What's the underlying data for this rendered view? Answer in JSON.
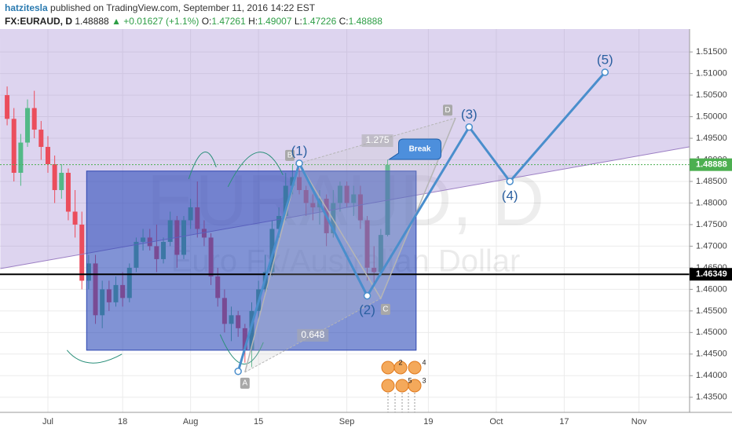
{
  "header": {
    "author": "hatzitesla",
    "published": "published on TradingView.com, September 11, 2016 14:22 EST",
    "symbol": "FX:EURAUD, D",
    "last": "1.48888",
    "change": "▲ +0.01627 (+1.1%)",
    "o_label": "O:",
    "o": "1.47261",
    "h_label": "H:",
    "h": "1.49007",
    "l_label": "L:",
    "l": "1.47226",
    "c_label": "C:",
    "c": "1.48888"
  },
  "chart_data": {
    "type": "candlestick",
    "watermark": "EURAUD, D",
    "watermark_sub": "Euro Fx/Australian Dollar",
    "x": [
      -6,
      -5,
      -4,
      -3,
      -2,
      -1,
      0,
      1,
      2,
      3,
      4,
      5,
      6,
      7,
      8,
      9,
      10,
      11,
      12,
      13,
      14,
      15,
      16,
      17,
      18,
      19,
      20,
      21,
      22,
      23,
      24,
      25,
      26,
      27,
      28,
      29,
      30,
      31,
      32,
      33,
      34,
      35,
      36,
      37,
      38,
      39,
      40,
      41,
      42,
      43,
      44,
      45,
      46,
      47,
      48,
      49,
      50
    ],
    "open": [
      1.505,
      1.4995,
      1.487,
      1.494,
      1.502,
      1.497,
      1.493,
      1.489,
      1.483,
      1.487,
      1.478,
      1.475,
      1.462,
      1.466,
      1.454,
      1.46,
      1.457,
      1.461,
      1.458,
      1.465,
      1.471,
      1.472,
      1.47,
      1.467,
      1.471,
      1.476,
      1.468,
      1.476,
      1.479,
      1.474,
      1.472,
      1.463,
      1.458,
      1.452,
      1.454,
      1.451,
      1.446,
      1.455,
      1.46,
      1.464,
      1.474,
      1.477,
      1.484,
      1.486,
      1.483,
      1.48,
      1.479,
      1.481,
      1.473,
      1.48,
      1.484,
      1.48,
      1.482,
      1.476,
      1.465,
      1.464,
      1.47261
    ],
    "high": [
      1.507,
      1.502,
      1.496,
      1.504,
      1.506,
      1.499,
      1.4955,
      1.491,
      1.489,
      1.488,
      1.483,
      1.478,
      1.468,
      1.468,
      1.462,
      1.462,
      1.463,
      1.464,
      1.466,
      1.472,
      1.474,
      1.474,
      1.475,
      1.472,
      1.478,
      1.477,
      1.477,
      1.481,
      1.485,
      1.476,
      1.473,
      1.465,
      1.46,
      1.456,
      1.455,
      1.452,
      1.457,
      1.462,
      1.468,
      1.476,
      1.479,
      1.487,
      1.489,
      1.488,
      1.484,
      1.482,
      1.483,
      1.482,
      1.483,
      1.485,
      1.485,
      1.484,
      1.484,
      1.477,
      1.47,
      1.474,
      1.49007
    ],
    "low": [
      1.498,
      1.485,
      1.484,
      1.493,
      1.495,
      1.49,
      1.487,
      1.48,
      1.481,
      1.476,
      1.472,
      1.46,
      1.46,
      1.452,
      1.451,
      1.455,
      1.456,
      1.456,
      1.457,
      1.464,
      1.469,
      1.469,
      1.464,
      1.466,
      1.47,
      1.465,
      1.467,
      1.474,
      1.472,
      1.47,
      1.461,
      1.456,
      1.45,
      1.448,
      1.449,
      1.443,
      1.442,
      1.453,
      1.459,
      1.463,
      1.472,
      1.476,
      1.482,
      1.482,
      1.477,
      1.476,
      1.475,
      1.47,
      1.472,
      1.478,
      1.479,
      1.477,
      1.474,
      1.462,
      1.461,
      1.463,
      1.47226
    ],
    "close": [
      1.4995,
      1.487,
      1.494,
      1.502,
      1.497,
      1.493,
      1.489,
      1.483,
      1.487,
      1.478,
      1.475,
      1.462,
      1.466,
      1.454,
      1.46,
      1.457,
      1.461,
      1.458,
      1.465,
      1.471,
      1.472,
      1.47,
      1.467,
      1.471,
      1.476,
      1.468,
      1.476,
      1.479,
      1.474,
      1.472,
      1.463,
      1.458,
      1.452,
      1.454,
      1.451,
      1.446,
      1.455,
      1.46,
      1.464,
      1.474,
      1.477,
      1.484,
      1.486,
      1.483,
      1.48,
      1.479,
      1.481,
      1.473,
      1.48,
      1.484,
      1.48,
      1.482,
      1.476,
      1.465,
      1.464,
      1.4726,
      1.48888
    ],
    "up_color": "#53b987",
    "down_color": "#eb4d5c",
    "xlim": [
      -7.05,
      94.45
    ],
    "xticks": [
      {
        "value": 0,
        "label": "Jul"
      },
      {
        "value": 11,
        "label": "18"
      },
      {
        "value": 21,
        "label": "Aug"
      },
      {
        "value": 31,
        "label": "15"
      },
      {
        "value": 44,
        "label": "Sep"
      },
      {
        "value": 56,
        "label": "19"
      },
      {
        "value": 66,
        "label": "Oct"
      },
      {
        "value": 76,
        "label": "17"
      },
      {
        "value": 87,
        "label": "Nov"
      }
    ],
    "ylim": [
      1.4315,
      1.5203
    ],
    "yticks": [
      {
        "value": 1.435,
        "label": "1.43500"
      },
      {
        "value": 1.44,
        "label": "1.44000"
      },
      {
        "value": 1.445,
        "label": "1.44500"
      },
      {
        "value": 1.45,
        "label": "1.45000"
      },
      {
        "value": 1.455,
        "label": "1.45500"
      },
      {
        "value": 1.46,
        "label": "1.46000"
      },
      {
        "value": 1.465,
        "label": "1.46500"
      },
      {
        "value": 1.47,
        "label": "1.47000"
      },
      {
        "value": 1.475,
        "label": "1.47500"
      },
      {
        "value": 1.48,
        "label": "1.48000"
      },
      {
        "value": 1.485,
        "label": "1.48500"
      },
      {
        "value": 1.49,
        "label": "1.49000"
      },
      {
        "value": 1.495,
        "label": "1.49500"
      },
      {
        "value": 1.5,
        "label": "1.50000"
      },
      {
        "value": 1.505,
        "label": "1.50500"
      },
      {
        "value": 1.51,
        "label": "1.51000"
      },
      {
        "value": 1.515,
        "label": "1.51500"
      }
    ],
    "grid": true,
    "price_lines": [
      {
        "value": 1.48888,
        "color": "#4caf50",
        "dotted": true
      },
      {
        "value": 1.46349,
        "color": "#000000",
        "dotted": false
      }
    ],
    "trendline": {
      "x": [
        -7,
        94.4
      ],
      "y": [
        1.4648,
        1.493
      ],
      "color": "#9c7fc4",
      "fill": "rgba(150,120,205,0.32)"
    },
    "box": {
      "x": [
        5.7,
        54.2
      ],
      "y": [
        1.4874,
        1.4459
      ],
      "color": "#2d46b0",
      "fill": "rgba(45,75,185,0.6)"
    },
    "waves": {
      "x": [
        28,
        37,
        47,
        62,
        68,
        82
      ],
      "y": [
        1.441,
        1.4892,
        1.4585,
        1.4976,
        1.485,
        1.5103
      ],
      "labels": [
        null,
        "(1)",
        "(2)",
        "(3)",
        "(4)",
        "(5)"
      ],
      "color": "#4a8ecc"
    },
    "harmonic": {
      "x": [
        29,
        37,
        49,
        60
      ],
      "y": [
        1.4408,
        1.4892,
        1.4579,
        1.4997
      ],
      "labels": [
        "A",
        "B",
        "C",
        "D"
      ],
      "ratio_labels": [
        "1.275",
        "0.648"
      ],
      "color": "#b5b5b5"
    },
    "callout": {
      "text": "Break",
      "x": 50,
      "y": 1.4901
    },
    "events": [
      "2",
      "4",
      "5",
      "3"
    ]
  }
}
